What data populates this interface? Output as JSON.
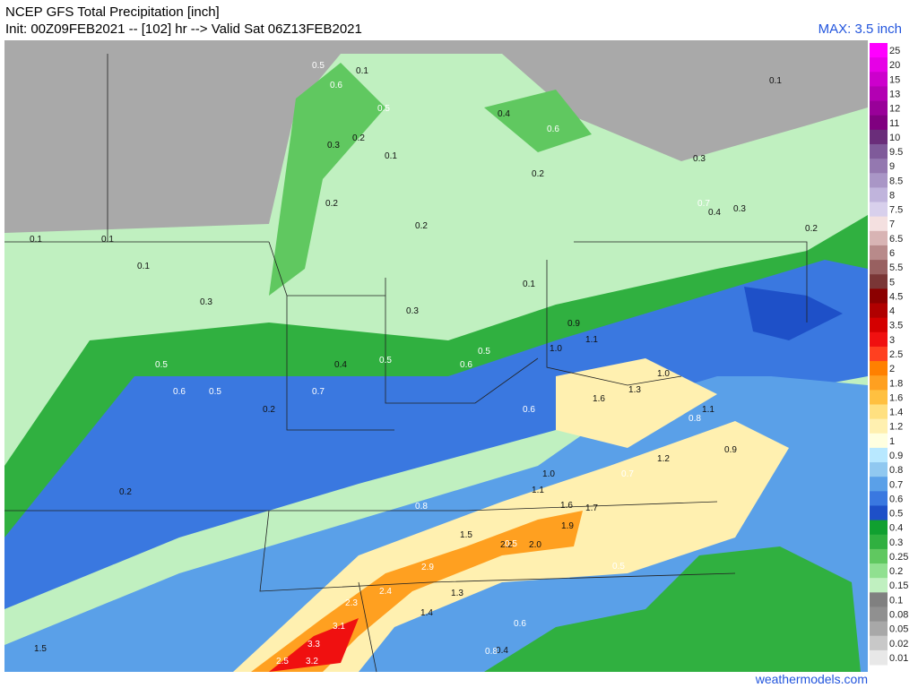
{
  "header": {
    "title": "NCEP GFS Total Precipitation [inch]",
    "subtitle": "Init: 00Z09FEB2021 -- [102] hr --> Valid Sat 06Z13FEB2021",
    "max": "MAX: 3.5 inch"
  },
  "colorbar": {
    "labels": [
      "25",
      "20",
      "15",
      "13",
      "12",
      "11",
      "10",
      "9.5",
      "9",
      "8.5",
      "8",
      "7.5",
      "7",
      "6.5",
      "6",
      "5.5",
      "5",
      "4.5",
      "4",
      "3.5",
      "3",
      "2.5",
      "2",
      "1.8",
      "1.6",
      "1.4",
      "1.2",
      "1",
      "0.9",
      "0.8",
      "0.7",
      "0.6",
      "0.5",
      "0.4",
      "0.3",
      "0.25",
      "0.2",
      "0.15",
      "0.1",
      "0.08",
      "0.05",
      "0.02",
      "0.01"
    ],
    "colors": [
      "#ff00ff",
      "#e600e6",
      "#cc00cc",
      "#b300b3",
      "#990099",
      "#800080",
      "#6a2d7a",
      "#7f5a9a",
      "#9478b0",
      "#a996c6",
      "#c0b4dc",
      "#d8d0ec",
      "#f4e0e0",
      "#d8b4b4",
      "#b88a8a",
      "#986060",
      "#7a3636",
      "#8b0000",
      "#b00000",
      "#d40000",
      "#f01010",
      "#ff4020",
      "#ff8000",
      "#ffa020",
      "#ffc040",
      "#ffe080",
      "#fff0b0",
      "#ffffe0",
      "#b8e8ff",
      "#90c8f0",
      "#5aa0e8",
      "#3a78e0",
      "#1e50c8",
      "#10a030",
      "#30b040",
      "#60c860",
      "#90e090",
      "#c0f0c0",
      "#808080",
      "#909090",
      "#a8a8a8",
      "#c8c8c8",
      "#e8e8e8"
    ]
  },
  "map": {
    "labels": [
      "0.5",
      "0.1",
      "0.6",
      "0.5",
      "0.3",
      "0.2",
      "0.6",
      "0.4",
      "0.1",
      "0.2",
      "0.3",
      "0.1",
      "0.2",
      "0.1",
      "0.2",
      "0.3",
      "0.2",
      "0.1",
      "0.7",
      "0.4",
      "0.3",
      "0.1",
      "0.2",
      "0.5",
      "0.6",
      "0.5",
      "0.4",
      "0.5",
      "0.6",
      "0.5",
      "0.7",
      "0.6",
      "0.9",
      "1.1",
      "1.0",
      "1.6",
      "1.3",
      "1.0",
      "0.8",
      "1.1",
      "1.2",
      "0.9",
      "1.0",
      "1.1",
      "0.7",
      "0.8",
      "1.5",
      "1.6",
      "1.7",
      "2.2",
      "2.0",
      "1.9",
      "2.9",
      "2.4",
      "2.3",
      "3.1",
      "3.3",
      "3.2",
      "2.5",
      "1.4",
      "1.3",
      "0.6",
      "0.4",
      "0.5",
      "0.8",
      "1.5",
      "0.5",
      "0.2",
      "0.3",
      "0.1"
    ]
  },
  "footer": {
    "credit": "weathermodels.com"
  }
}
